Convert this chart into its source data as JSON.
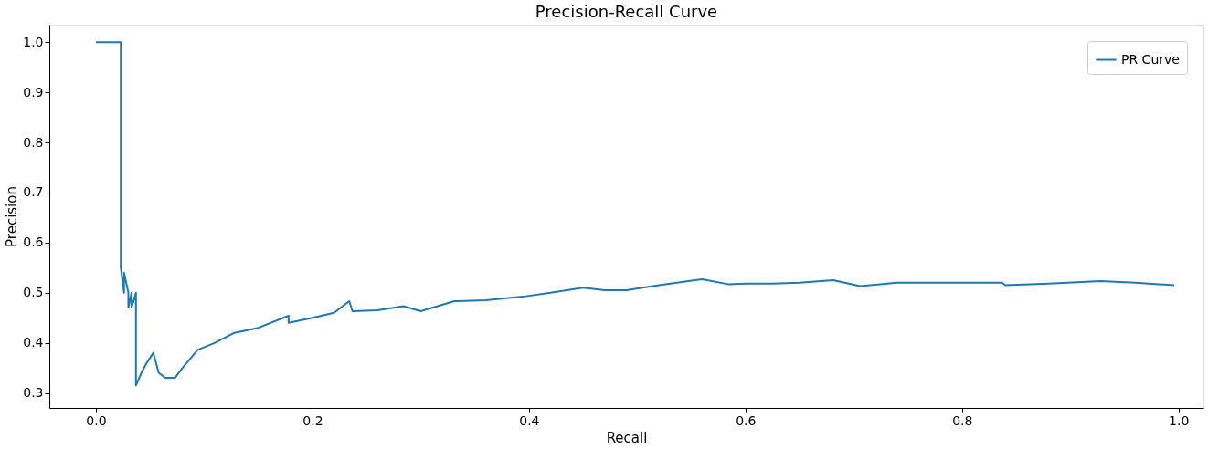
{
  "chart_data": {
    "type": "line",
    "title": "Precision-Recall Curve",
    "xlabel": "Recall",
    "ylabel": "Precision",
    "xlim": [
      -0.043,
      1.023
    ],
    "ylim": [
      0.27,
      1.035
    ],
    "xticks": [
      {
        "value": 0,
        "label": "0.0"
      },
      0.2,
      0.4,
      0.6,
      0.8,
      {
        "value": 1,
        "label": "1.0"
      }
    ],
    "yticks": [
      0.3,
      0.4,
      0.5,
      0.6,
      0.7,
      0.8,
      0.9,
      {
        "value": 1,
        "label": "1.0"
      }
    ],
    "grid": false,
    "legend": "top right",
    "marker": "none",
    "line_style": "solid",
    "series": [
      {
        "name": "PR Curve",
        "color": "#1f77b4",
        "x": [
          0.0,
          0.023,
          0.023,
          0.026,
          0.026,
          0.03,
          0.03,
          0.033,
          0.033,
          0.037,
          0.037,
          0.042,
          0.047,
          0.053,
          0.058,
          0.064,
          0.068,
          0.073,
          0.08,
          0.094,
          0.11,
          0.128,
          0.15,
          0.178,
          0.178,
          0.2,
          0.22,
          0.234,
          0.237,
          0.26,
          0.284,
          0.3,
          0.331,
          0.36,
          0.394,
          0.42,
          0.45,
          0.47,
          0.49,
          0.52,
          0.56,
          0.584,
          0.6,
          0.625,
          0.65,
          0.681,
          0.706,
          0.74,
          0.78,
          0.837,
          0.84,
          0.88,
          0.928,
          0.96,
          0.996
        ],
        "values": [
          1.0,
          1.0,
          0.55,
          0.5,
          0.54,
          0.5,
          0.47,
          0.5,
          0.47,
          0.5,
          0.315,
          0.34,
          0.36,
          0.38,
          0.34,
          0.33,
          0.33,
          0.33,
          0.35,
          0.386,
          0.4,
          0.42,
          0.43,
          0.454,
          0.44,
          0.45,
          0.46,
          0.483,
          0.463,
          0.465,
          0.473,
          0.463,
          0.483,
          0.485,
          0.492,
          0.5,
          0.51,
          0.505,
          0.505,
          0.515,
          0.527,
          0.517,
          0.518,
          0.518,
          0.52,
          0.525,
          0.513,
          0.52,
          0.52,
          0.52,
          0.515,
          0.518,
          0.523,
          0.52,
          0.515
        ]
      }
    ]
  }
}
